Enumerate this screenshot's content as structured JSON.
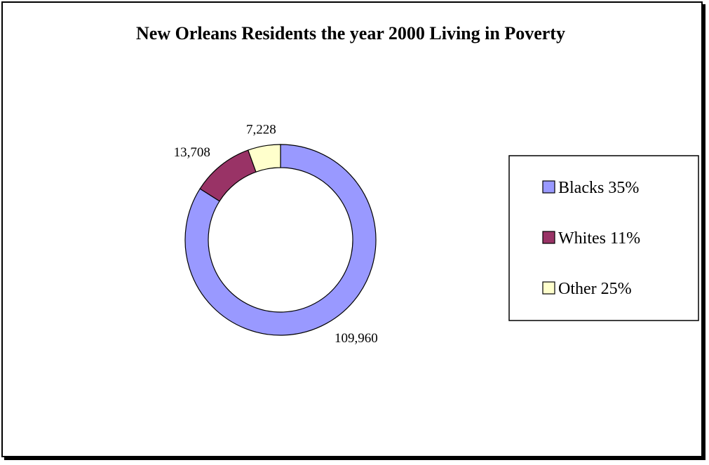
{
  "chart_data": {
    "type": "pie",
    "variant": "doughnut",
    "title": "New Orleans Residents the year 2000 Living in Poverty",
    "categories": [
      "Blacks 35%",
      "Whites 11%",
      "Other 25%"
    ],
    "values": [
      109960,
      13708,
      7228
    ],
    "data_labels": [
      "109,960",
      "13,708",
      "7,228"
    ],
    "colors": [
      "#9999ff",
      "#993366",
      "#ffffcc"
    ],
    "legend_position": "right",
    "grid": false
  }
}
